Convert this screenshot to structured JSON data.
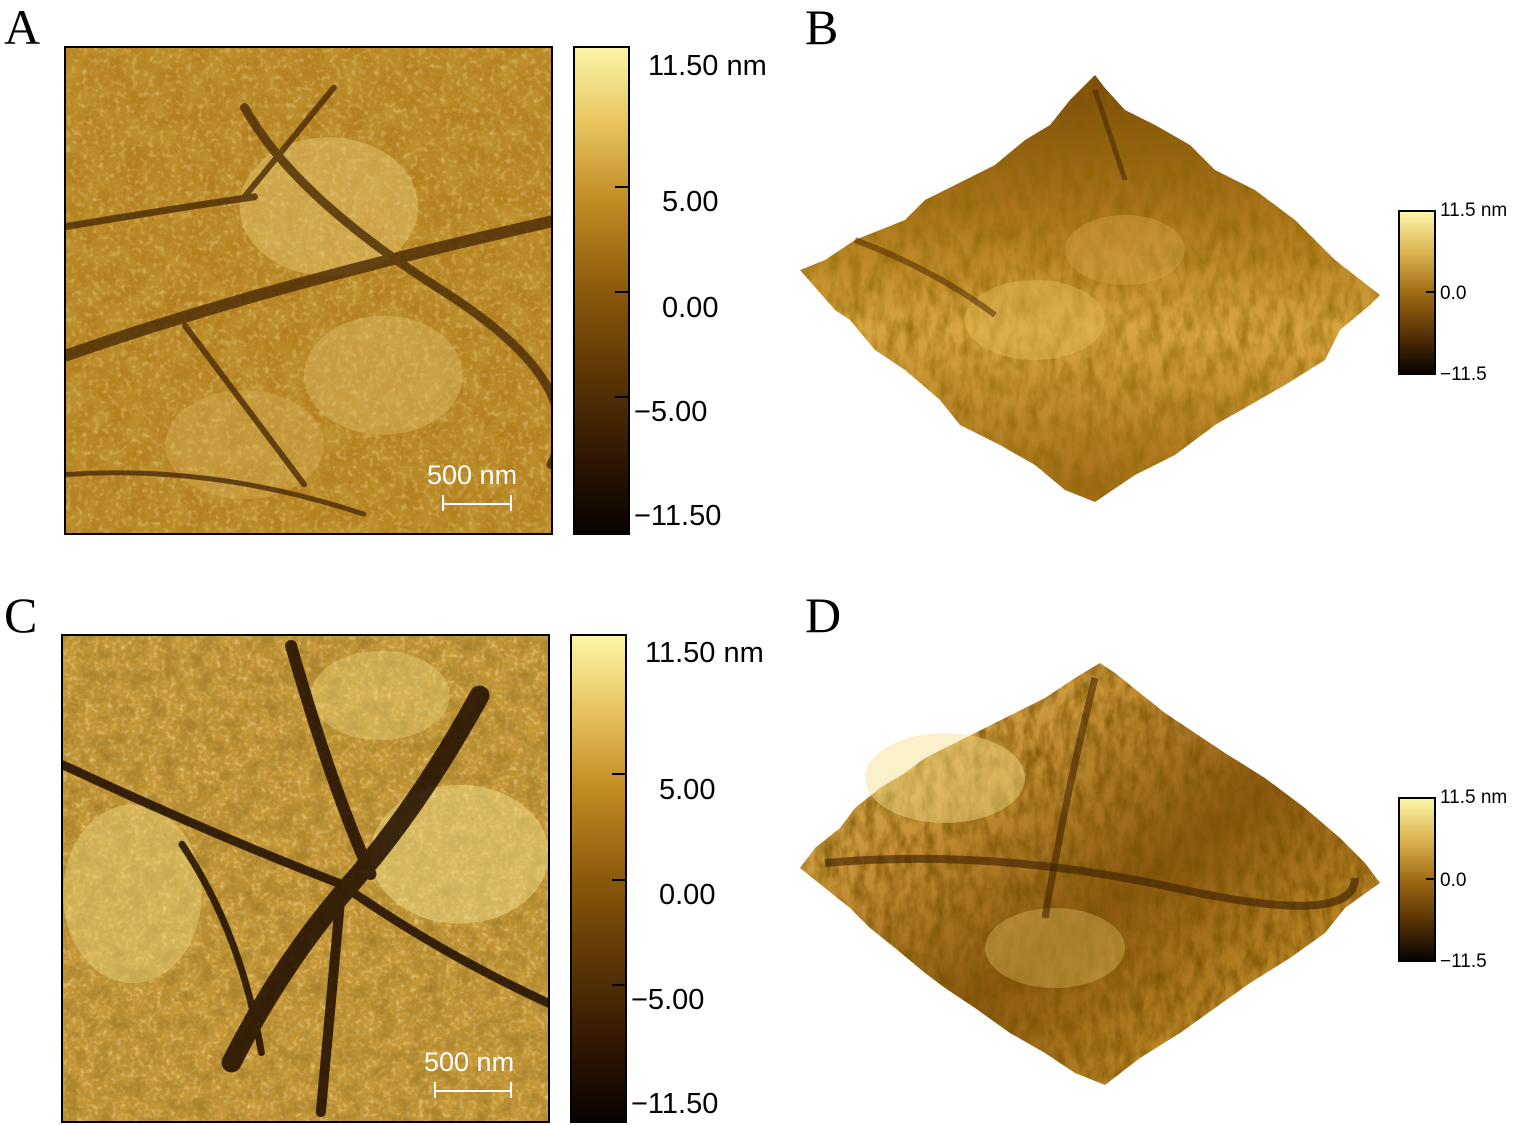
{
  "panels": [
    {
      "letter": "A",
      "type": "2d-topography",
      "colorbar": {
        "top": "11.50 nm",
        "mid_high": "5.00",
        "mid": "0.00",
        "mid_low": "−5.00",
        "bottom": "−11.50"
      },
      "scalebar": "500 nm"
    },
    {
      "letter": "B",
      "type": "3d-surface",
      "colorbar": {
        "top": "11.5 nm",
        "mid": "0.0",
        "bottom": "−11.5"
      }
    },
    {
      "letter": "C",
      "type": "2d-topography",
      "colorbar": {
        "top": "11.50 nm",
        "mid_high": "5.00",
        "mid": "0.00",
        "mid_low": "−5.00",
        "bottom": "−11.50"
      },
      "scalebar": "500 nm"
    },
    {
      "letter": "D",
      "type": "3d-surface",
      "colorbar": {
        "top": "11.5 nm",
        "mid": "0.0",
        "bottom": "−11.5"
      }
    }
  ],
  "colormap": {
    "dark": "#1a0a00",
    "mid": "#8a5a10",
    "light": "#f5e9a0",
    "brown": "#c08a28"
  }
}
